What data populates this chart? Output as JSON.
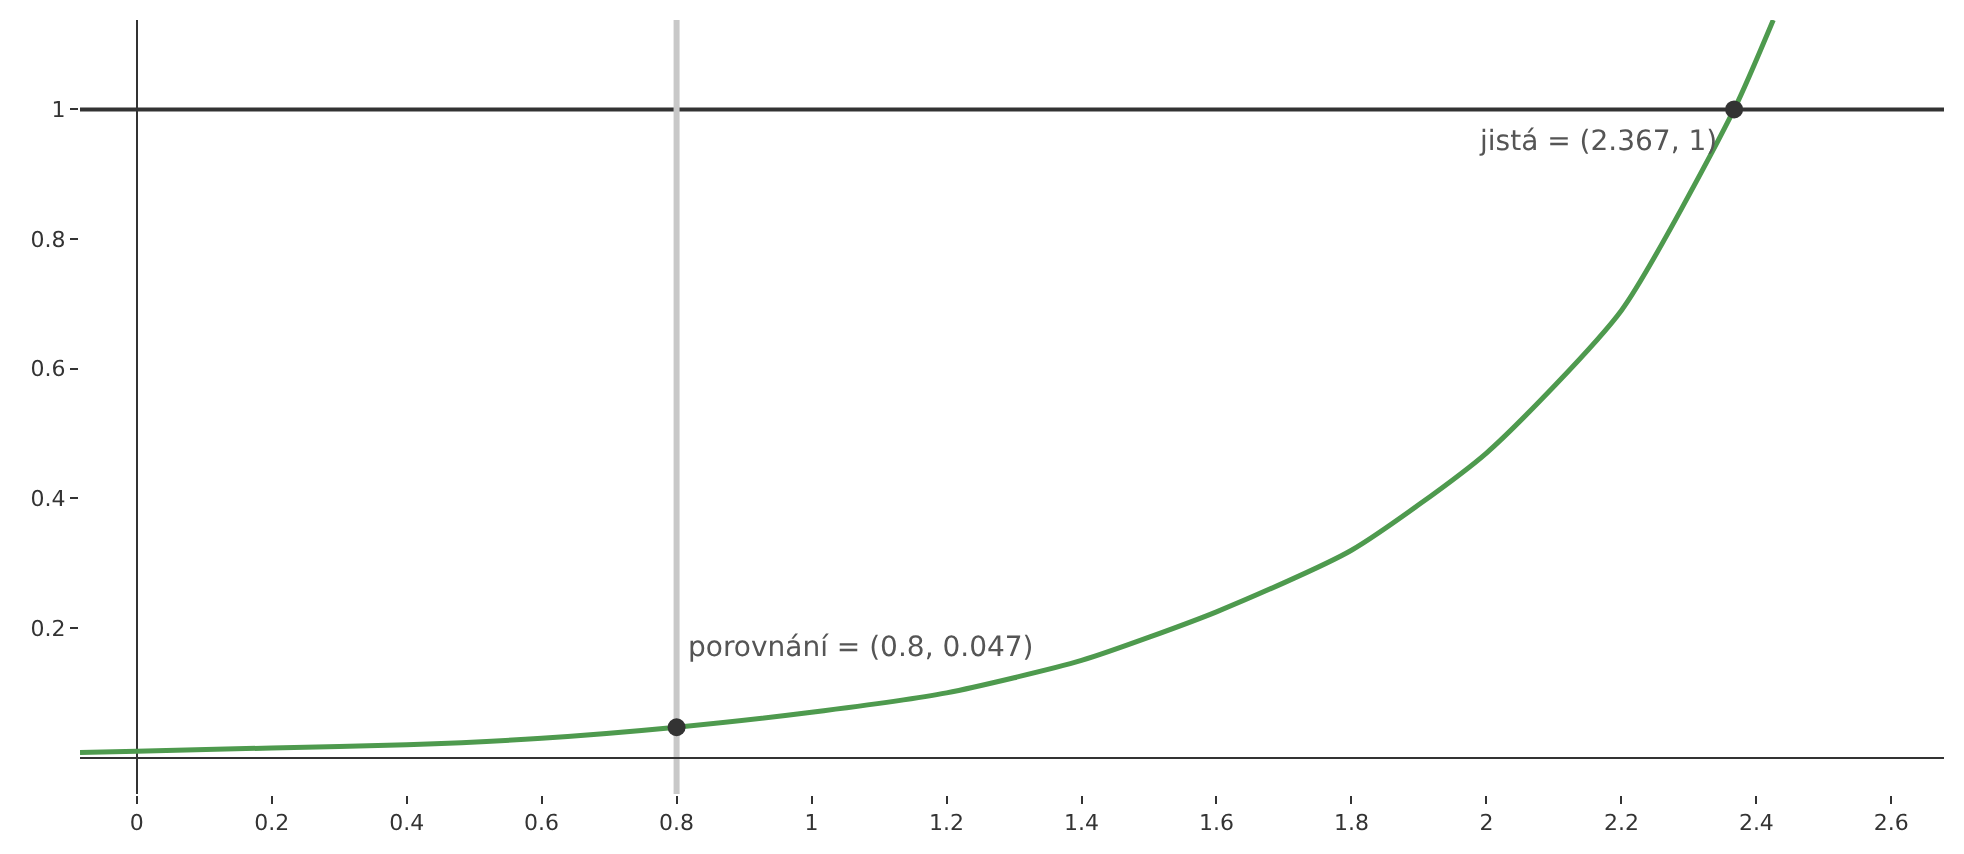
{
  "chart_data": {
    "type": "line",
    "xlim": [
      -0.084,
      2.678
    ],
    "ylim": [
      -0.056,
      1.138
    ],
    "xticks": [
      0,
      0.2,
      0.4,
      0.6,
      0.8,
      1,
      1.2,
      1.4,
      1.6,
      1.8,
      2,
      2.2,
      2.4,
      2.6
    ],
    "yticks": [
      0.2,
      0.4,
      0.6,
      0.8,
      1
    ],
    "grid": false,
    "marker": "none",
    "line_style": "solid",
    "series": [
      {
        "color": "#4e9a4e",
        "x": [
          -0.084,
          0,
          0.2,
          0.4,
          0.6,
          0.8,
          1.0,
          1.2,
          1.4,
          1.6,
          1.8,
          2.0,
          2.2,
          2.367,
          2.425
        ],
        "values": [
          0.008,
          0.01,
          0.015,
          0.02,
          0.03,
          0.047,
          0.07,
          0.1,
          0.15,
          0.225,
          0.32,
          0.47,
          0.69,
          1,
          1.138
        ]
      },
      {
        "type": "scatter",
        "marker": "circle",
        "color": "#333333",
        "x": [
          0.8,
          2.367
        ],
        "values": [
          0.047,
          1
        ]
      }
    ],
    "ref_lines": [
      {
        "axis": "y",
        "value": 1,
        "color": "#333333",
        "line_style": "solid"
      },
      {
        "axis": "x",
        "value": 0.8,
        "color": "#c8c8c8",
        "line_style": "solid"
      }
    ],
    "annotations": [
      {
        "text": "porovnání = (0.8, 0.047)",
        "x": 0.8,
        "y": 0.047
      },
      {
        "text": "jistá = (2.367, 1)",
        "x": 2.367,
        "y": 1
      }
    ]
  }
}
